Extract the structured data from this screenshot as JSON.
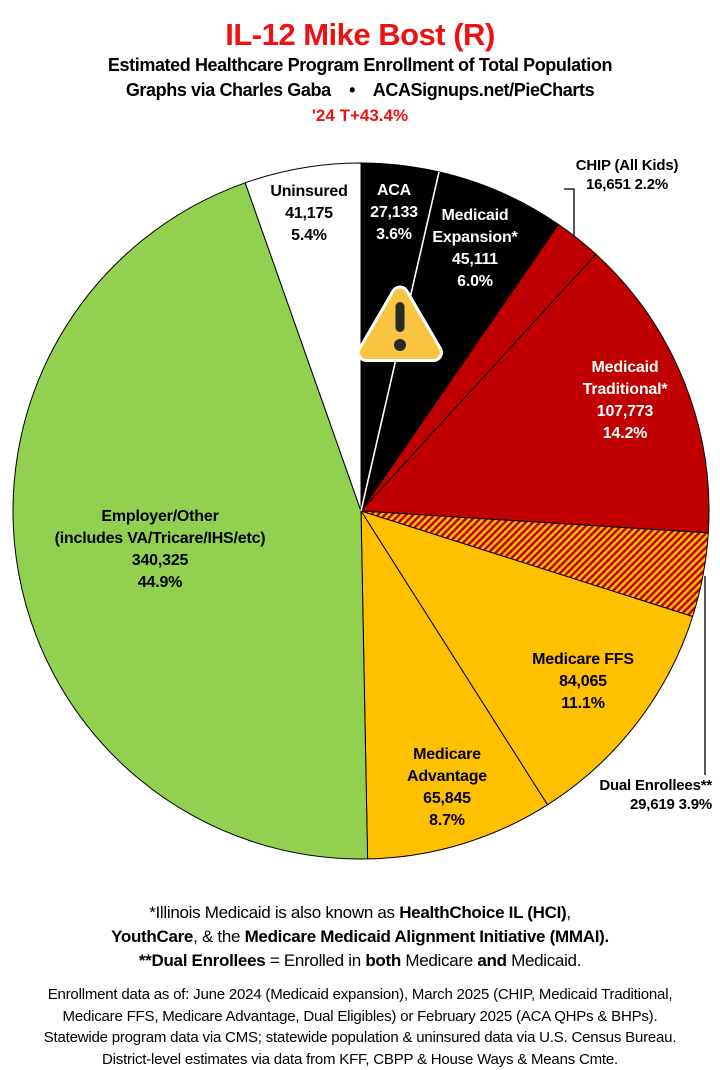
{
  "header": {
    "title": "IL-12 Mike Bost (R)",
    "subtitle": "Estimated Healthcare Program Enrollment of Total Population",
    "byline": "Graphs via Charles Gaba    •    ACASignups.net/PieCharts",
    "delta": "'24 T+43.4%"
  },
  "colors": {
    "title_red": "#EE1111",
    "dark_red": "#C00000",
    "gold": "#FFC000",
    "green": "#92D050",
    "black": "#000000",
    "white": "#FFFFFF",
    "warning_triangle_fill": "#F9C440",
    "warning_triangle_glyph": "#2A2A28"
  },
  "chart_data": {
    "type": "pie",
    "start_angle_deg": 0,
    "direction": "clockwise",
    "legend_position": "labels-on-slices",
    "slices": [
      {
        "id": "aca",
        "label": "ACA",
        "value": 27133,
        "value_text": "27,133",
        "pct": 3.6,
        "pct_text": "3.6%",
        "fill": "#000000",
        "display_lines": [
          "ACA",
          "27,133",
          "3.6%"
        ]
      },
      {
        "id": "medicaid-expansion",
        "label": "Medicaid Expansion*",
        "value": 45111,
        "value_text": "45,111",
        "pct": 6.0,
        "pct_text": "6.0%",
        "fill": "#000000",
        "display_lines": [
          "Medicaid",
          "Expansion*",
          "45,111",
          "6.0%"
        ]
      },
      {
        "id": "chip",
        "label": "CHIP (All Kids)",
        "value": 16651,
        "value_text": "16,651",
        "pct": 2.2,
        "pct_text": "2.2%",
        "fill": "#C00000",
        "label_position": "outside",
        "display_lines": [
          "CHIP (All Kids)",
          "16,651 2.2%"
        ]
      },
      {
        "id": "medicaid-traditional",
        "label": "Medicaid Traditional*",
        "value": 107773,
        "value_text": "107,773",
        "pct": 14.2,
        "pct_text": "14.2%",
        "fill": "#C00000",
        "display_lines": [
          "Medicaid",
          "Traditional*",
          "107,773",
          "14.2%"
        ]
      },
      {
        "id": "dual-enrollees",
        "label": "Dual Enrollees**",
        "value": 29619,
        "value_text": "29,619",
        "pct": 3.9,
        "pct_text": "3.9%",
        "fill": "hatch",
        "hatch_colors": [
          "#C00000",
          "#FFC000"
        ],
        "label_position": "outside",
        "display_lines": [
          "Dual Enrollees**",
          "29,619 3.9%"
        ]
      },
      {
        "id": "medicare-ffs",
        "label": "Medicare FFS",
        "value": 84065,
        "value_text": "84,065",
        "pct": 11.1,
        "pct_text": "11.1%",
        "fill": "#FFC000",
        "display_lines": [
          "Medicare FFS",
          "84,065",
          "11.1%"
        ]
      },
      {
        "id": "medicare-advantage",
        "label": "Medicare Advantage",
        "value": 65845,
        "value_text": "65,845",
        "pct": 8.7,
        "pct_text": "8.7%",
        "fill": "#FFC000",
        "display_lines": [
          "Medicare",
          "Advantage",
          "65,845",
          "8.7%"
        ]
      },
      {
        "id": "employer-other",
        "label": "Employer/Other (includes VA/Tricare/IHS/etc)",
        "value": 340325,
        "value_text": "340,325",
        "pct": 44.9,
        "pct_text": "44.9%",
        "fill": "#92D050",
        "display_lines": [
          "Employer/Other",
          "(includes VA/Tricare/IHS/etc)",
          "340,325",
          "44.9%"
        ]
      },
      {
        "id": "uninsured",
        "label": "Uninsured",
        "value": 41175,
        "value_text": "41,175",
        "pct": 5.4,
        "pct_text": "5.4%",
        "fill": "#FFFFFF",
        "display_lines": [
          "Uninsured",
          "41,175",
          "5.4%"
        ]
      }
    ],
    "warning_icon": {
      "name": "warning-triangle",
      "on_boundary_between": [
        "aca",
        "medicaid-expansion"
      ]
    }
  },
  "footnote1": {
    "lines": [
      [
        {
          "text": "*Illinois Medicaid is also known as ",
          "bold": false
        },
        {
          "text": "HealthChoice IL (HCI)",
          "bold": true
        },
        {
          "text": ",",
          "bold": false
        }
      ],
      [
        {
          "text": "YouthCare",
          "bold": true
        },
        {
          "text": ", & the ",
          "bold": false
        },
        {
          "text": "Medicare Medicaid Alignment Initiative (MMAI).",
          "bold": true
        }
      ],
      [
        {
          "text": "**Dual Enrollees",
          "bold": true
        },
        {
          "text": " = Enrolled in ",
          "bold": false
        },
        {
          "text": "both",
          "bold": true
        },
        {
          "text": " Medicare ",
          "bold": false
        },
        {
          "text": "and",
          "bold": true
        },
        {
          "text": " Medicaid.",
          "bold": false
        }
      ]
    ]
  },
  "footnote2": {
    "lines": [
      "Enrollment data as of: June 2024 (Medicaid expansion), March 2025 (CHIP, Medicaid Traditional,",
      "Medicare FFS, Medicare Advantage, Dual Eligibles) or February 2025 (ACA QHPs & BHPs).",
      "Statewide program data via CMS; statewide population & uninsured data via U.S. Census Bureau.",
      "District-level estimates via data from KFF, CBPP & House Ways & Means Cmte."
    ]
  }
}
